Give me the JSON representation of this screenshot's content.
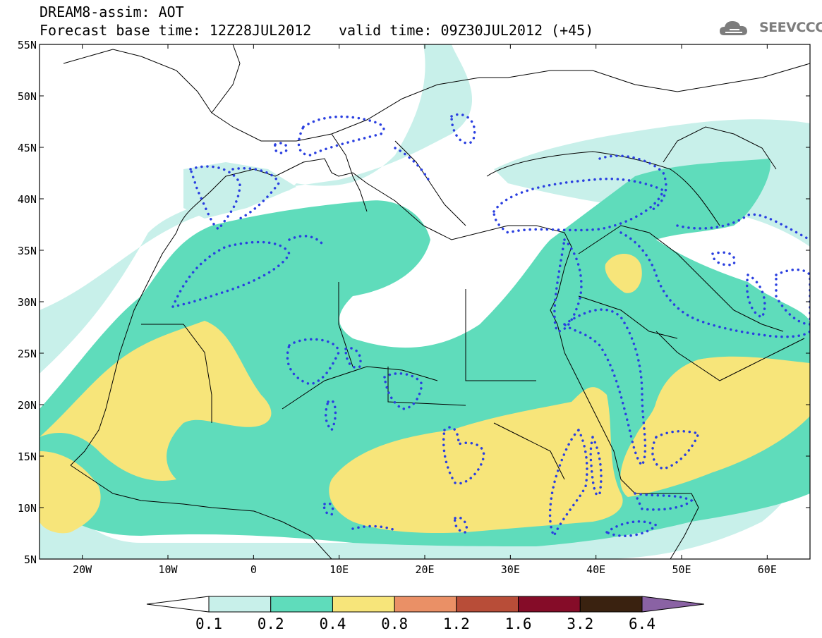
{
  "header": {
    "model_line": "DREAM8-assim: AOT",
    "base_time": "Forecast base time: 12Z28JUL2012",
    "valid_time": "valid time: 09Z30JUL2012 (+45)"
  },
  "brand": {
    "name": "SEEVCCC",
    "icon": "cloud-icon"
  },
  "map": {
    "lat_labels": [
      "55N",
      "50N",
      "45N",
      "40N",
      "35N",
      "30N",
      "25N",
      "20N",
      "15N",
      "10N",
      "5N"
    ],
    "lon_labels": [
      "20W",
      "10W",
      "0",
      "10E",
      "20E",
      "30E",
      "40E",
      "50E",
      "60E"
    ],
    "lon_range": [
      -25,
      65
    ],
    "lat_range": [
      5,
      55
    ]
  },
  "legend": {
    "levels": [
      "0.1",
      "0.2",
      "0.4",
      "0.8",
      "1.2",
      "1.6",
      "3.2",
      "6.4"
    ],
    "colors": [
      "#ffffff",
      "#c8f0ea",
      "#5fdcbb",
      "#f7e57a",
      "#ea9066",
      "#b84d38",
      "#850c28",
      "#3a2210",
      "#8a62a4"
    ]
  },
  "colors": {
    "aot_low": "#c8f0ea",
    "aot_mid": "#5fdcbb",
    "aot_high": "#f7e57a",
    "dust_contour": "#2a3fe0"
  }
}
